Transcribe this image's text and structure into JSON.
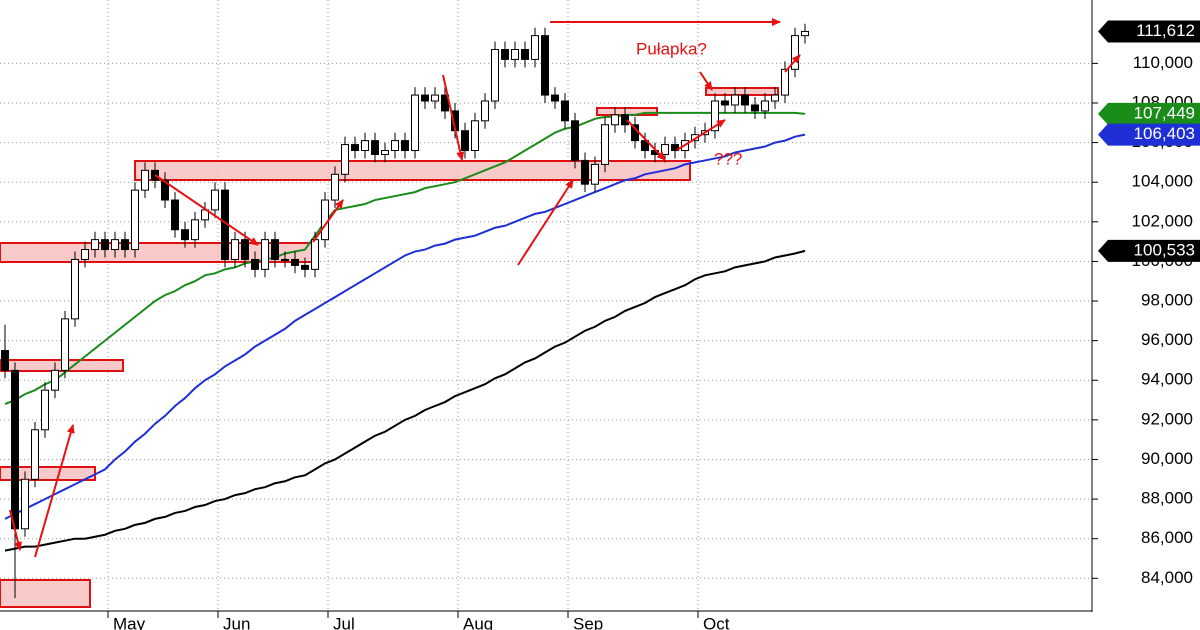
{
  "chart_data": {
    "type": "candlestick",
    "categories": [
      null,
      null,
      null,
      null,
      null,
      null,
      null,
      null,
      null,
      null,
      null,
      "May",
      null,
      null,
      null,
      null,
      null,
      null,
      null,
      null,
      null,
      null,
      "Jun",
      null,
      null,
      null,
      null,
      null,
      null,
      null,
      null,
      null,
      null,
      "Jul",
      null,
      null,
      null,
      null,
      null,
      null,
      null,
      null,
      null,
      null,
      null,
      null,
      "Aug",
      null,
      null,
      null,
      null,
      null,
      null,
      null,
      null,
      null,
      null,
      "Sep",
      null,
      null,
      null,
      null,
      null,
      null,
      null,
      null,
      null,
      null,
      null,
      null,
      "Oct",
      null,
      null,
      null,
      null,
      null,
      null,
      null,
      null,
      null,
      null
    ],
    "open": [
      95500,
      94500,
      86500,
      89000,
      91500,
      93500,
      94500,
      97100,
      100100,
      100600,
      101100,
      100600,
      101100,
      100600,
      103600,
      104600,
      104100,
      103100,
      101600,
      101100,
      102100,
      102600,
      103600,
      100100,
      101100,
      100100,
      99600,
      101100,
      100100,
      100100,
      99800,
      99600,
      101100,
      103100,
      104400,
      105900,
      105600,
      106100,
      105400,
      105600,
      106100,
      105600,
      108400,
      108100,
      108400,
      107600,
      106600,
      105600,
      107100,
      108100,
      110700,
      110200,
      110700,
      110200,
      111400,
      108400,
      108100,
      107100,
      105100,
      103900,
      104900,
      106900,
      107400,
      106900,
      106100,
      105600,
      105400,
      105900,
      105600,
      106100,
      106400,
      106600,
      108100,
      107900,
      108400,
      107900,
      107600,
      108100,
      108400,
      109700,
      111400
    ],
    "high": [
      96800,
      94900,
      89400,
      91900,
      93900,
      94900,
      97500,
      100500,
      101000,
      101500,
      101500,
      101500,
      101500,
      104000,
      105000,
      105000,
      104500,
      103500,
      102000,
      102500,
      103000,
      104000,
      104000,
      101500,
      101500,
      100500,
      101500,
      101500,
      100500,
      100500,
      100200,
      101500,
      103500,
      104800,
      106300,
      106300,
      106500,
      106500,
      106000,
      106500,
      106500,
      108800,
      108800,
      108800,
      108800,
      108000,
      107000,
      107500,
      108500,
      111100,
      111100,
      111100,
      111100,
      111800,
      111800,
      108800,
      108500,
      107500,
      105500,
      105300,
      107300,
      107800,
      107800,
      107300,
      106500,
      106000,
      106300,
      106300,
      106500,
      106800,
      107000,
      108500,
      108500,
      108800,
      108800,
      108300,
      108500,
      108800,
      110100,
      111800,
      112000
    ],
    "low": [
      94100,
      83000,
      86100,
      88600,
      91100,
      93100,
      94100,
      96700,
      99700,
      100200,
      100200,
      100200,
      100200,
      100200,
      103200,
      103700,
      102700,
      101200,
      100700,
      100700,
      101700,
      102200,
      99700,
      99700,
      99700,
      99200,
      99200,
      99700,
      99700,
      99400,
      99200,
      99200,
      100700,
      102700,
      104000,
      105200,
      105200,
      105000,
      105000,
      105200,
      105200,
      105200,
      107700,
      107700,
      107200,
      106200,
      105200,
      105200,
      106700,
      107700,
      109800,
      109800,
      109800,
      109800,
      108000,
      107700,
      106700,
      104700,
      103500,
      103500,
      104500,
      106500,
      106500,
      105700,
      105200,
      105000,
      105000,
      105200,
      105200,
      105700,
      106000,
      106200,
      107500,
      107500,
      107500,
      107200,
      107200,
      107700,
      108000,
      109300,
      111000
    ],
    "close": [
      94500,
      86500,
      89000,
      91500,
      93500,
      94500,
      97100,
      100100,
      100600,
      101100,
      100600,
      101100,
      100600,
      103600,
      104600,
      104100,
      103100,
      101600,
      101100,
      102100,
      102600,
      103600,
      100100,
      101100,
      100100,
      99600,
      101100,
      100100,
      100100,
      99800,
      99600,
      101100,
      103100,
      104400,
      105900,
      105600,
      106100,
      105400,
      105600,
      106100,
      105600,
      108400,
      108100,
      108400,
      107600,
      106600,
      105600,
      107100,
      108100,
      110700,
      110200,
      110700,
      110200,
      111400,
      108400,
      108100,
      107100,
      105100,
      103900,
      104900,
      106900,
      107400,
      106900,
      106100,
      105600,
      105400,
      105900,
      105600,
      106100,
      106400,
      106600,
      108100,
      107900,
      108400,
      107900,
      107600,
      108100,
      108400,
      109700,
      111400,
      111612
    ],
    "lines": [
      {
        "color": "#1a8c1a",
        "values": [
          92800,
          93000,
          93300,
          93500,
          93800,
          94000,
          94400,
          94800,
          95200,
          95600,
          96000,
          96400,
          96800,
          97200,
          97600,
          98000,
          98300,
          98500,
          98800,
          99000,
          99300,
          99400,
          99600,
          99700,
          99900,
          100000,
          100100,
          100200,
          100400,
          100500,
          100600,
          101300,
          102000,
          102600,
          102700,
          102800,
          102900,
          103100,
          103200,
          103300,
          103400,
          103500,
          103700,
          103800,
          103900,
          104000,
          104200,
          104400,
          104600,
          104800,
          105000,
          105300,
          105600,
          105900,
          106200,
          106500,
          106700,
          106800,
          107000,
          107200,
          107300,
          107300,
          107400,
          107400,
          107500,
          107500,
          107500,
          107500,
          107500,
          107500,
          107500,
          107500,
          107500,
          107500,
          107500,
          107500,
          107500,
          107500,
          107500,
          107500,
          107449
        ]
      },
      {
        "color": "#1f2fd6",
        "values": [
          87000,
          87250,
          87500,
          87750,
          88000,
          88250,
          88500,
          88750,
          89000,
          89250,
          89500,
          90000,
          90400,
          90900,
          91300,
          91800,
          92200,
          92700,
          93100,
          93600,
          94000,
          94300,
          94700,
          95000,
          95300,
          95700,
          96000,
          96300,
          96600,
          97000,
          97300,
          97600,
          97900,
          98200,
          98500,
          98800,
          99100,
          99400,
          99700,
          100000,
          100300,
          100500,
          100600,
          100800,
          100900,
          101100,
          101200,
          101300,
          101500,
          101700,
          101800,
          102000,
          102200,
          102400,
          102500,
          102700,
          102900,
          103100,
          103300,
          103500,
          103700,
          103900,
          104100,
          104200,
          104400,
          104500,
          104600,
          104700,
          104900,
          105000,
          105100,
          105200,
          105300,
          105500,
          105600,
          105700,
          105800,
          106000,
          106100,
          106300,
          106403
        ]
      },
      {
        "color": "#000000",
        "values": [
          85400,
          85500,
          85600,
          85600,
          85700,
          85800,
          85900,
          86000,
          86000,
          86100,
          86200,
          86400,
          86500,
          86700,
          86800,
          87000,
          87100,
          87300,
          87400,
          87600,
          87700,
          87900,
          88000,
          88200,
          88300,
          88500,
          88600,
          88800,
          88900,
          89100,
          89200,
          89500,
          89800,
          90000,
          90300,
          90600,
          90900,
          91200,
          91400,
          91700,
          92000,
          92200,
          92500,
          92700,
          92900,
          93200,
          93400,
          93600,
          93800,
          94100,
          94300,
          94600,
          94900,
          95100,
          95400,
          95700,
          95900,
          96200,
          96500,
          96700,
          97000,
          97200,
          97500,
          97700,
          97900,
          98200,
          98400,
          98600,
          98800,
          99100,
          99300,
          99400,
          99500,
          99700,
          99800,
          99900,
          100000,
          100200,
          100300,
          100400,
          100533
        ]
      }
    ],
    "price_labels": [
      {
        "value": 111612,
        "label": "111,612",
        "color": "#000000"
      },
      {
        "value": 107449,
        "label": "107,449",
        "color": "#1a8c1a"
      },
      {
        "value": 106403,
        "label": "106,403",
        "color": "#1f2fd6"
      },
      {
        "value": 100533,
        "label": "100,533",
        "color": "#000000"
      }
    ],
    "ylim": [
      82400,
      113200
    ],
    "yticks": [
      {
        "value": 84000,
        "label": "84,000"
      },
      {
        "value": 86000,
        "label": "86,000"
      },
      {
        "value": 88000,
        "label": "88,000"
      },
      {
        "value": 90000,
        "label": "90,000"
      },
      {
        "value": 92000,
        "label": "92,000"
      },
      {
        "value": 94000,
        "label": "94,000"
      },
      {
        "value": 96000,
        "label": "96,000"
      },
      {
        "value": 98000,
        "label": "98,000"
      },
      {
        "value": 100000,
        "label": "100,000"
      },
      {
        "value": 102000,
        "label": "102,000"
      },
      {
        "value": 104000,
        "label": "104,000"
      },
      {
        "value": 106000,
        "label": "106,000"
      },
      {
        "value": 108000,
        "label": "108,000"
      },
      {
        "value": 110000,
        "label": "110,000"
      }
    ],
    "grid": true,
    "annotations": [
      "Pułapka?",
      "???"
    ]
  }
}
